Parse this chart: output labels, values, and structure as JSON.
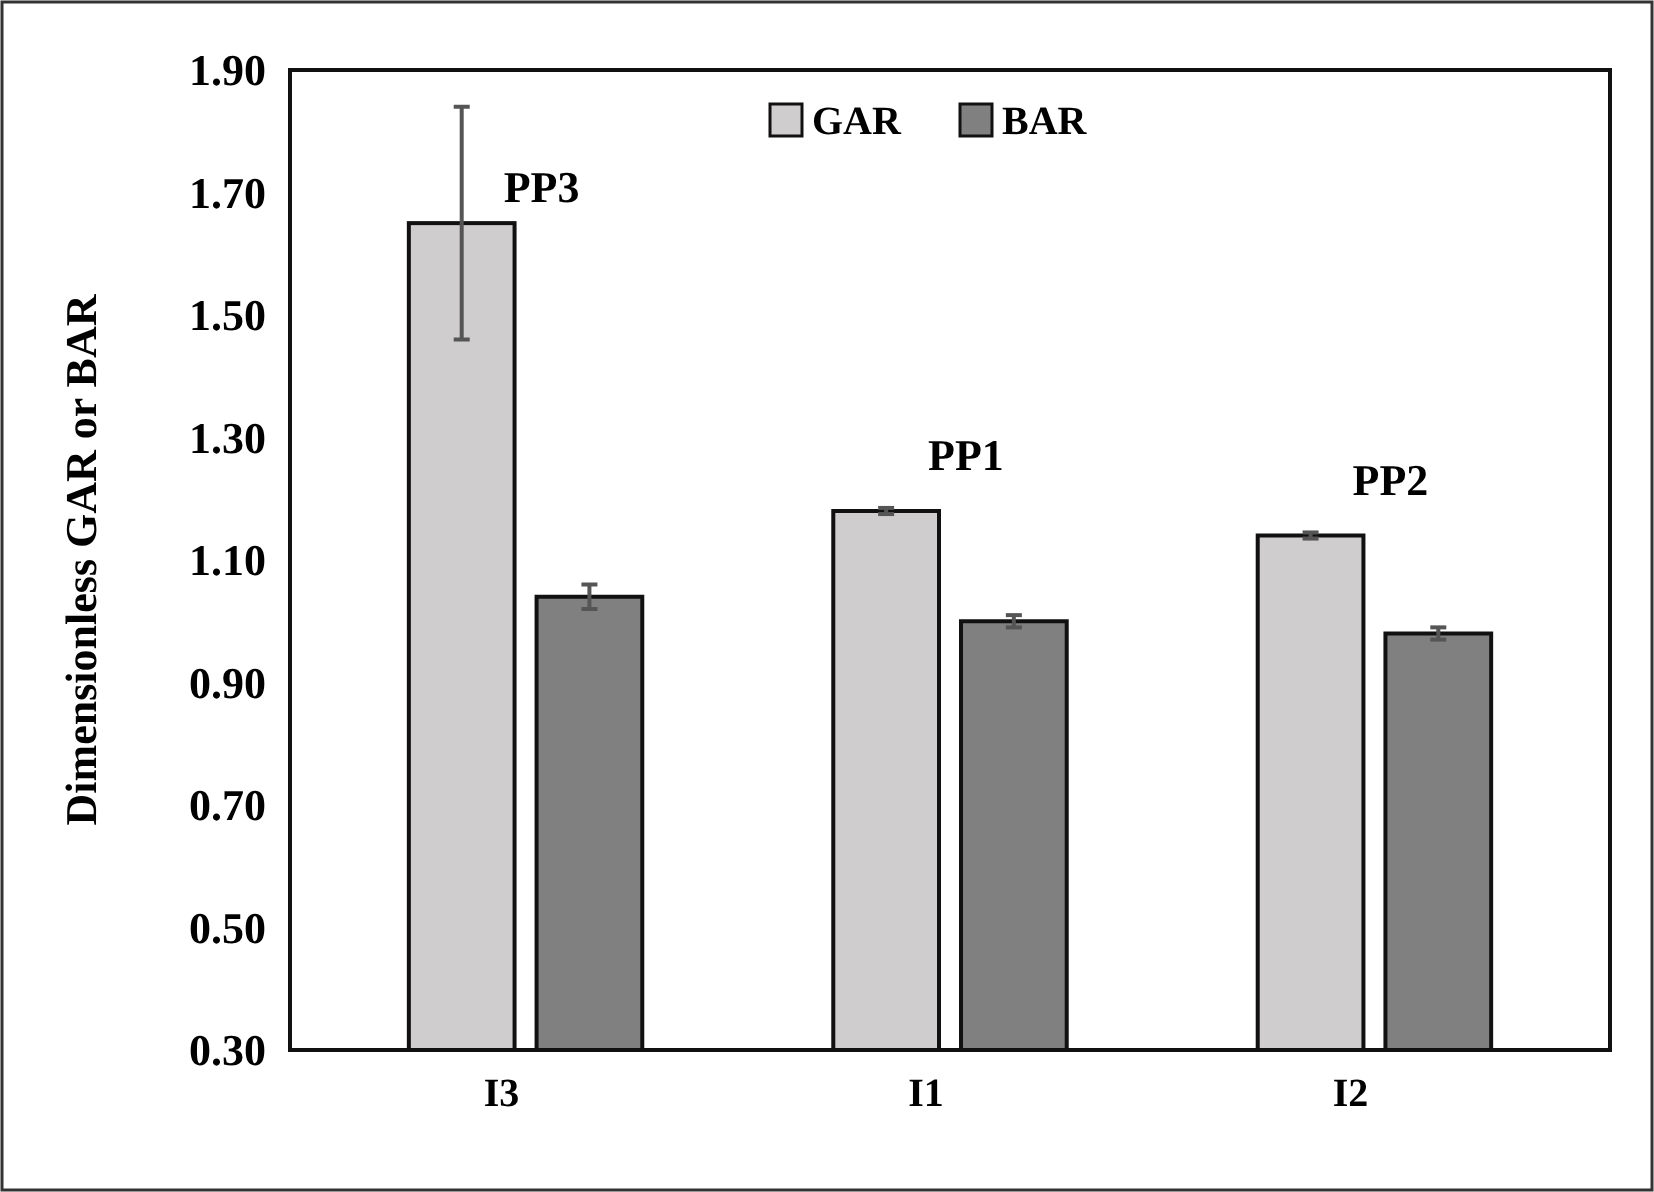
{
  "chart_data": {
    "type": "bar",
    "ylabel": "Dimensionless GAR or BAR",
    "categories": [
      "I3",
      "I1",
      "I2"
    ],
    "series": [
      {
        "name": "GAR",
        "color": "#d0cdce",
        "values": [
          1.65,
          1.18,
          1.14
        ],
        "errors": [
          0.19,
          0.005,
          0.005
        ]
      },
      {
        "name": "BAR",
        "color": "#808080",
        "values": [
          1.04,
          1.0,
          0.98
        ],
        "errors": [
          0.02,
          0.01,
          0.01
        ]
      }
    ],
    "ylim": [
      0.3,
      1.9
    ],
    "yticks": [
      {
        "value": 0.3,
        "label": "0.30"
      },
      {
        "value": 0.5,
        "label": "0.50"
      },
      {
        "value": 0.7,
        "label": "0.70"
      },
      {
        "value": 0.9,
        "label": "0.90"
      },
      {
        "value": 1.1,
        "label": "1.10"
      },
      {
        "value": 1.3,
        "label": "1.30"
      },
      {
        "value": 1.5,
        "label": "1.50"
      },
      {
        "value": 1.7,
        "label": "1.70"
      },
      {
        "value": 1.9,
        "label": "1.90"
      }
    ],
    "annotations": [
      "PP3",
      "PP1",
      "PP2"
    ],
    "legend": "top",
    "grid": false
  }
}
